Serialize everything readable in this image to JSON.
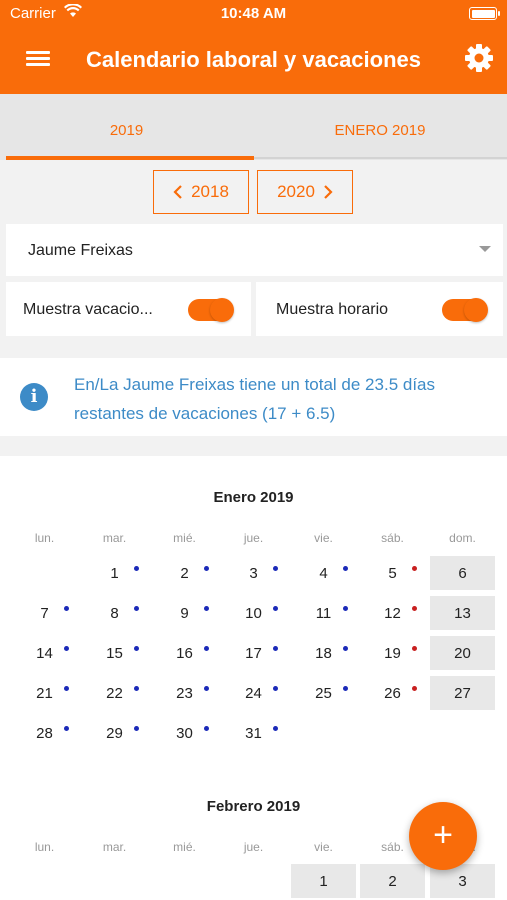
{
  "status_bar": {
    "carrier": "Carrier",
    "time": "10:48 AM"
  },
  "header": {
    "title": "Calendario laboral y vacaciones",
    "menu_icon": "hamburger-menu-icon",
    "settings_icon": "gear-icon"
  },
  "tabs": [
    {
      "label": "2019",
      "active": true
    },
    {
      "label": "ENERO 2019",
      "active": false
    }
  ],
  "year_nav": {
    "prev_label": "2018",
    "next_label": "2020"
  },
  "person": {
    "selected": "Jaume Freixas"
  },
  "toggles": [
    {
      "label": "Muestra vacacio...",
      "on": true
    },
    {
      "label": "Muestra horario",
      "on": true
    }
  ],
  "info": {
    "message": "En/La Jaume Freixas tiene un total de 23.5 días restantes de vacaciones (17 + 6.5)"
  },
  "calendar": {
    "weekdays": [
      "lun.",
      "mar.",
      "mié.",
      "jue.",
      "vie.",
      "sáb.",
      "dom."
    ],
    "months": [
      {
        "title": "Enero 2019",
        "start_col": 1,
        "days_shown": 31,
        "shaded_cols": [
          6
        ],
        "blue_dot_days": [
          1,
          2,
          3,
          4,
          7,
          8,
          9,
          10,
          11,
          14,
          15,
          16,
          17,
          18,
          21,
          22,
          23,
          24,
          25,
          28,
          29,
          30,
          31
        ],
        "red_dot_days": [
          5,
          12,
          19,
          26
        ]
      },
      {
        "title": "Febrero 2019",
        "start_col": 4,
        "days_shown": 3,
        "shaded_cols": [
          4,
          5,
          6
        ],
        "blue_dot_days": [],
        "red_dot_days": []
      }
    ]
  },
  "fab": {
    "label": "+"
  },
  "colors": {
    "accent": "#f96c0a",
    "info": "#3d8bc7",
    "workday_dot": "#1b2ab8",
    "weekend_dot": "#c82020"
  }
}
